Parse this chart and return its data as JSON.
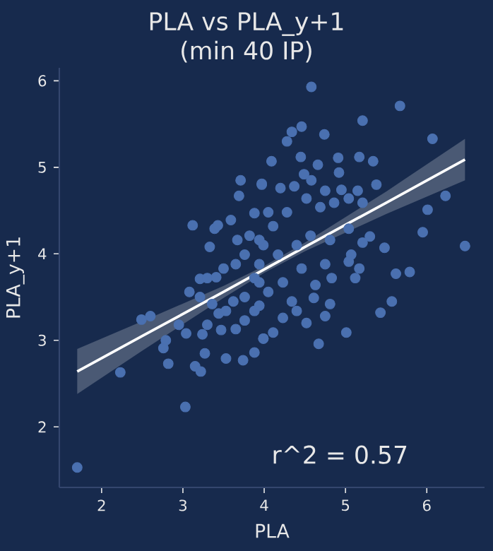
{
  "chart_data": {
    "type": "scatter",
    "title": "PLA vs PLA_y+1",
    "subtitle": "(min 40 IP)",
    "xlabel": "PLA",
    "ylabel": "PLA_y+1",
    "xlim": [
      1.48,
      6.71
    ],
    "ylim": [
      1.3,
      6.15
    ],
    "xticks": [
      2,
      3,
      4,
      5,
      6
    ],
    "yticks": [
      2,
      3,
      4,
      5,
      6
    ],
    "grid": false,
    "annotations": [
      "r^2 = 0.57"
    ],
    "series": [
      {
        "color": "#4a70b0",
        "marker": "circle",
        "x": [
          1.7,
          2.23,
          3.03,
          2.49,
          2.6,
          2.82,
          2.76,
          2.79,
          2.95,
          3.04,
          3.08,
          3.15,
          3.22,
          3.27,
          3.12,
          3.33,
          3.39,
          3.43,
          3.59,
          3.71,
          3.69,
          3.97,
          3.88,
          3.53,
          3.74,
          3.88,
          3.99,
          3.21,
          3.3,
          3.41,
          3.5,
          3.21,
          3.36,
          3.44,
          3.24,
          3.3,
          3.47,
          3.65,
          3.76,
          3.62,
          3.53,
          3.76,
          3.88,
          3.65,
          3.76,
          3.82,
          3.99,
          3.94,
          3.67,
          4.58,
          5.67,
          5.21,
          4.46,
          4.34,
          4.28,
          4.74,
          6.07,
          4.09,
          4.45,
          4.66,
          4.91,
          5.17,
          5.34,
          3.97,
          4.2,
          4.37,
          4.58,
          4.75,
          4.95,
          5.15,
          5.38,
          6.23,
          6.01,
          5.95,
          6.47,
          5.48,
          5.62,
          5.79,
          5.57,
          5.43,
          5.01,
          4.67,
          5.12,
          5.17,
          5.3,
          5.21,
          5.07,
          5.04,
          4.75,
          4.81,
          4.61,
          4.52,
          4.4,
          4.11,
          3.99,
          4.23,
          4.63,
          4.83,
          4.75,
          4.46,
          4.23,
          4.05,
          4.34,
          4.17,
          4.4,
          4.57,
          4.81,
          5.04,
          4.69,
          4.86,
          5.04,
          5.21,
          4.52,
          4.28,
          4.05,
          4.11,
          3.94,
          3.94,
          3.88,
          3.94,
          4.49,
          4.92
        ],
        "values": [
          1.53,
          2.63,
          2.23,
          3.24,
          3.28,
          2.73,
          2.91,
          3.0,
          3.18,
          3.08,
          3.56,
          2.7,
          2.64,
          2.85,
          4.33,
          4.08,
          4.29,
          4.33,
          4.39,
          4.85,
          4.67,
          4.8,
          4.47,
          2.79,
          2.77,
          2.86,
          3.02,
          3.71,
          3.72,
          3.73,
          3.83,
          3.5,
          3.42,
          3.31,
          3.07,
          3.18,
          3.12,
          3.13,
          3.23,
          3.45,
          3.34,
          3.5,
          3.34,
          3.88,
          3.99,
          4.21,
          4.1,
          3.67,
          4.16,
          5.93,
          5.71,
          5.54,
          5.47,
          5.41,
          5.3,
          5.38,
          5.33,
          5.07,
          5.12,
          5.03,
          5.11,
          5.12,
          5.07,
          4.81,
          4.76,
          4.78,
          4.85,
          4.73,
          4.74,
          4.73,
          4.8,
          4.67,
          4.51,
          4.25,
          4.09,
          4.07,
          3.77,
          3.79,
          3.45,
          3.32,
          3.09,
          2.96,
          3.72,
          3.83,
          4.2,
          4.13,
          3.99,
          3.91,
          3.28,
          3.42,
          3.49,
          3.2,
          3.34,
          3.09,
          3.02,
          3.26,
          3.64,
          3.72,
          3.88,
          3.83,
          3.67,
          3.56,
          3.45,
          3.99,
          4.1,
          4.21,
          4.16,
          4.29,
          4.54,
          4.59,
          4.64,
          4.59,
          4.64,
          4.48,
          4.48,
          4.32,
          4.16,
          3.88,
          3.72,
          3.4,
          4.92,
          4.94
        ]
      },
      {
        "type": "line",
        "color": "#ffffff",
        "marker": "none",
        "line_style": "solid",
        "x": [
          1.7,
          2.5,
          3.5,
          4.0,
          4.5,
          5.5,
          6.47
        ],
        "values": [
          2.64,
          3.05,
          3.56,
          3.82,
          4.08,
          4.59,
          5.09
        ],
        "lower": [
          2.38,
          2.88,
          3.49,
          3.78,
          4.03,
          4.46,
          4.85
        ],
        "upper": [
          2.9,
          3.22,
          3.63,
          3.86,
          4.13,
          4.72,
          5.33
        ]
      }
    ]
  }
}
